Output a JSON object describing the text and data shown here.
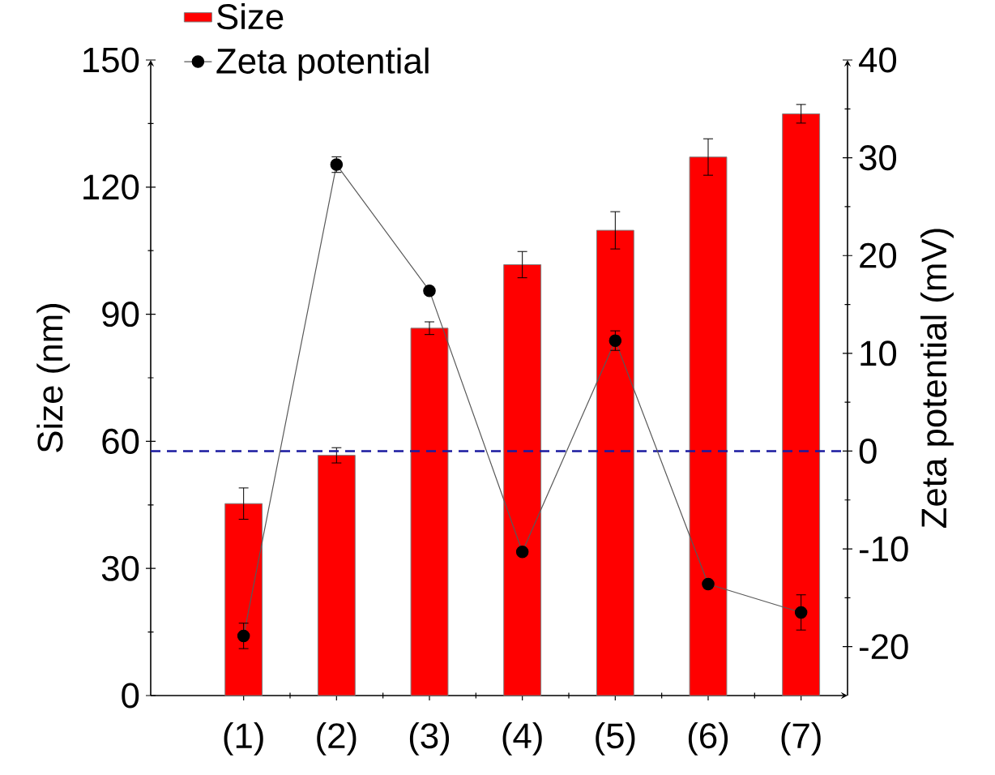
{
  "chart_data": {
    "type": "bar",
    "categories": [
      "(1)",
      "(2)",
      "(3)",
      "(4)",
      "(5)",
      "(6)",
      "(7)"
    ],
    "ylabel": "Size (nm)",
    "y2label": "Zeta potential (mV)",
    "ylim": [
      0,
      150
    ],
    "yticks": [
      0,
      30,
      60,
      90,
      120,
      150
    ],
    "y2lim": [
      -25,
      40
    ],
    "y2ticks": [
      -20,
      -10,
      0,
      10,
      20,
      30,
      40
    ],
    "series": [
      {
        "name": "Size",
        "color": "#ff0000",
        "values": [
          45.3,
          56.7,
          86.7,
          101.7,
          109.8,
          127.1,
          137.3
        ],
        "errors": [
          3.7,
          1.8,
          1.5,
          3.1,
          4.4,
          4.3,
          2.2
        ]
      },
      {
        "name": "Zeta potential",
        "type": "line",
        "axis": "y2",
        "color": "#000000",
        "values": [
          -18.9,
          29.3,
          16.4,
          -10.3,
          11.3,
          -13.6,
          -16.5
        ],
        "errors": [
          1.3,
          0.8,
          null,
          null,
          1,
          null,
          1.8
        ]
      }
    ],
    "ref_lines": [
      {
        "axis": "y2",
        "value": 0,
        "color": "#1a1aa0",
        "line_style": "dashed"
      }
    ],
    "legend": "top left",
    "marker": "circle",
    "grid": false
  }
}
